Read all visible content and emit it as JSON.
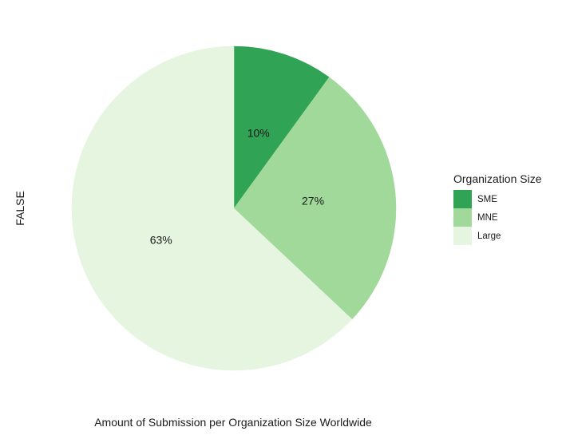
{
  "chart_data": {
    "type": "pie",
    "title": "",
    "xlabel": "Amount of Submission per Organization Size Worldwide",
    "ylabel": "FALSE",
    "direction": "clockwise",
    "start_angle": "top",
    "slices": [
      {
        "label": "SME",
        "value": 10,
        "display": "10%",
        "color": "#31a354"
      },
      {
        "label": "MNE",
        "value": 27,
        "display": "27%",
        "color": "#a1d99b"
      },
      {
        "label": "Large",
        "value": 63,
        "display": "63%",
        "color": "#e5f5e0"
      }
    ],
    "legend": {
      "title": "Organization Size",
      "placement": "right"
    }
  }
}
